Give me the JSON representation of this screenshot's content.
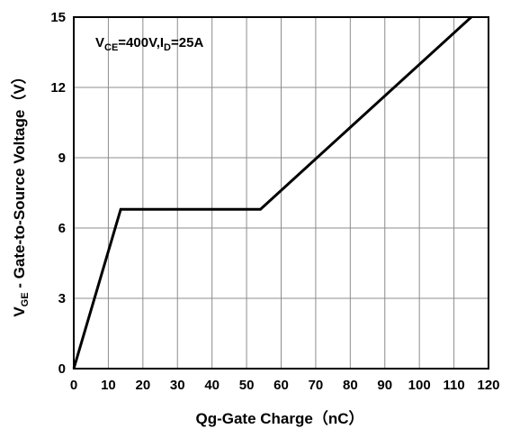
{
  "chart_data": {
    "type": "line",
    "xlabel": "Qg-Gate Charge（nC）",
    "ylabel": {
      "prefix": "V",
      "sub": "GE",
      "rest": " - Gate-to-Source Voltage（V）"
    },
    "annotation": {
      "v": "V",
      "ce": "CE",
      "mid": "=400V,I",
      "d": "D",
      "end": "=25A"
    },
    "xlim": [
      0,
      120
    ],
    "ylim": [
      0,
      15
    ],
    "x_ticks": [
      "0",
      "10",
      "20",
      "30",
      "40",
      "50",
      "60",
      "70",
      "80",
      "90",
      "100",
      "110",
      "120"
    ],
    "y_ticks": [
      "0",
      "3",
      "6",
      "9",
      "12",
      "15"
    ],
    "grid": true,
    "series": [
      {
        "color": "#000000",
        "x": [
          0,
          13.6,
          54,
          115
        ],
        "y": [
          0,
          6.8,
          6.8,
          15
        ]
      }
    ]
  }
}
